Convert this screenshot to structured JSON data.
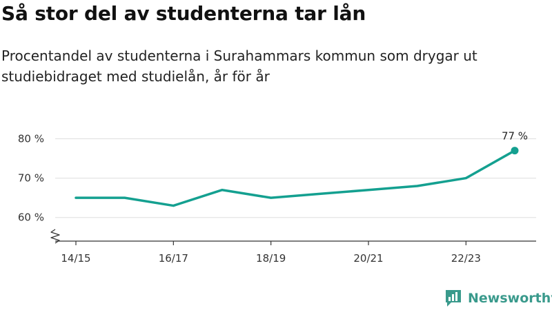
{
  "header": {
    "title": "Så stor del av studenterna tar lån",
    "subtitle": "Procentandel av studenterna i Surahammars kommun som drygar ut studiebidraget med studielån, år för år"
  },
  "branding": {
    "logo_text": "Newsworthy",
    "logo_icon": "newsworthy-bar-chart-icon"
  },
  "colors": {
    "line": "#14a090",
    "grid": "#dddddd",
    "axis": "#333333",
    "logo": "#3a9a8c"
  },
  "chart_data": {
    "type": "line",
    "title": "",
    "xlabel": "",
    "ylabel": "",
    "x": [
      "14/15",
      "15/16",
      "16/17",
      "17/18",
      "18/19",
      "19/20",
      "20/21",
      "21/22",
      "22/23",
      "23/24"
    ],
    "x_tick_labels": [
      "14/15",
      "16/17",
      "18/19",
      "20/21",
      "22/23"
    ],
    "series": [
      {
        "values": [
          65,
          65,
          63,
          67,
          65,
          66,
          67,
          68,
          70,
          77
        ]
      }
    ],
    "y_ticks": [
      60,
      70,
      80
    ],
    "y_tick_labels": [
      "60 %",
      "70 %",
      "80 %"
    ],
    "ylim": [
      54,
      82
    ],
    "y_axis_break": true,
    "grid": true,
    "annotations": [
      {
        "x": "23/24",
        "text": "77 %"
      }
    ]
  }
}
